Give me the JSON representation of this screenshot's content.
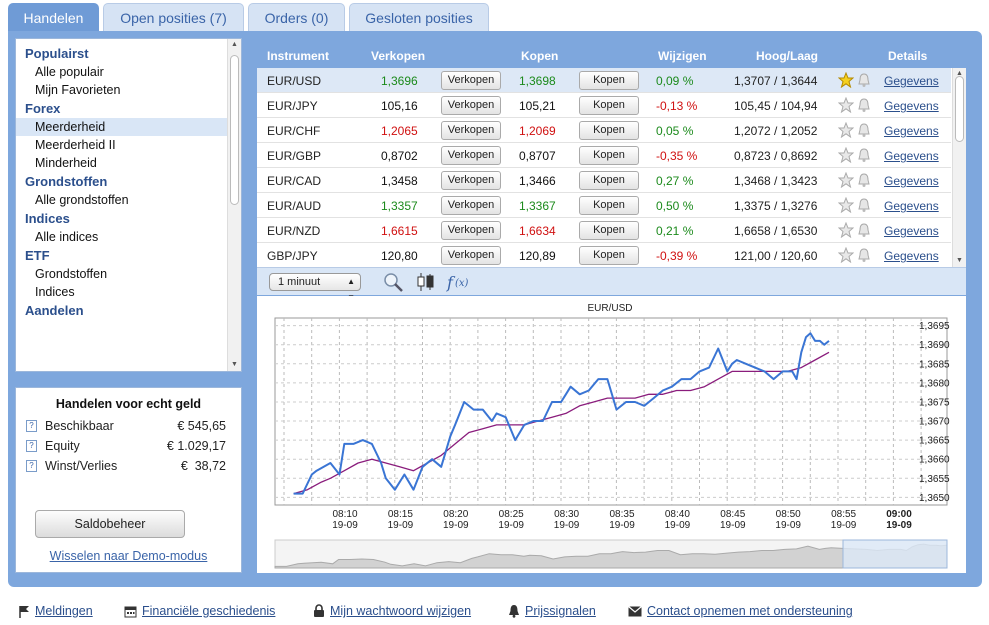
{
  "tabs": [
    {
      "label": "Handelen"
    },
    {
      "label": "Open posities (7)"
    },
    {
      "label": "Orders (0)"
    },
    {
      "label": "Gesloten posities"
    }
  ],
  "nav": {
    "groups": [
      {
        "title": "Populairst",
        "items": [
          "Alle populair",
          "Mijn Favorieten"
        ]
      },
      {
        "title": "Forex",
        "items": [
          "Meerderheid",
          "Meerderheid II",
          "Minderheid"
        ]
      },
      {
        "title": "Grondstoffen",
        "items": [
          "Alle grondstoffen"
        ]
      },
      {
        "title": "Indices",
        "items": [
          "Alle indices"
        ]
      },
      {
        "title": "ETF",
        "items": [
          "Grondstoffen",
          "Indices"
        ]
      },
      {
        "title": "Aandelen",
        "items": []
      }
    ],
    "selected": "Meerderheid"
  },
  "account": {
    "title": "Handelen voor echt geld",
    "rows": [
      {
        "label": "Beschikbaar",
        "value": "€ 545,65"
      },
      {
        "label": "Equity",
        "value": "€ 1.029,17"
      },
      {
        "label": "Winst/Verlies",
        "value": "€  38,72"
      }
    ],
    "saldo_button": "Saldobeheer",
    "demo_link": "Wisselen naar Demo-modus"
  },
  "quotes": {
    "headers": {
      "instrument": "Instrument",
      "sell": "Verkopen",
      "buy": "Kopen",
      "change": "Wijzigen",
      "highlow": "Hoog/Laag",
      "details": "Details"
    },
    "sell_button": "Verkopen",
    "buy_button": "Kopen",
    "details_link": "Gegevens",
    "rows": [
      {
        "instrument": "EUR/USD",
        "sell": "1,3696",
        "buy": "1,3698",
        "change": "0,09 %",
        "highlow": "1,3707 / 1,3644",
        "price_color": "green",
        "change_color": "green",
        "favorite": true
      },
      {
        "instrument": "EUR/JPY",
        "sell": "105,16",
        "buy": "105,21",
        "change": "-0,13 %",
        "highlow": "105,45 / 104,94",
        "price_color": "black",
        "change_color": "red",
        "favorite": false
      },
      {
        "instrument": "EUR/CHF",
        "sell": "1,2065",
        "buy": "1,2069",
        "change": "0,05 %",
        "highlow": "1,2072 / 1,2052",
        "price_color": "red",
        "change_color": "green",
        "favorite": false
      },
      {
        "instrument": "EUR/GBP",
        "sell": "0,8702",
        "buy": "0,8707",
        "change": "-0,35 %",
        "highlow": "0,8723 / 0,8692",
        "price_color": "black",
        "change_color": "red",
        "favorite": false
      },
      {
        "instrument": "EUR/CAD",
        "sell": "1,3458",
        "buy": "1,3466",
        "change": "0,27 %",
        "highlow": "1,3468 / 1,3423",
        "price_color": "black",
        "change_color": "green",
        "favorite": false
      },
      {
        "instrument": "EUR/AUD",
        "sell": "1,3357",
        "buy": "1,3367",
        "change": "0,50 %",
        "highlow": "1,3375 / 1,3276",
        "price_color": "green",
        "change_color": "green",
        "favorite": false
      },
      {
        "instrument": "EUR/NZD",
        "sell": "1,6615",
        "buy": "1,6634",
        "change": "0,21 %",
        "highlow": "1,6658 / 1,6530",
        "price_color": "red",
        "change_color": "green",
        "favorite": false
      },
      {
        "instrument": "GBP/JPY",
        "sell": "120,80",
        "buy": "120,89",
        "change": "-0,39 %",
        "highlow": "121,00 / 120,60",
        "price_color": "black",
        "change_color": "red",
        "favorite": false
      }
    ]
  },
  "chart_toolbar": {
    "interval": "1 minuut",
    "icons": [
      "zoom-icon",
      "candlestick-icon",
      "function-icon"
    ]
  },
  "colors": {
    "frame": "#7ea7dd",
    "tab_active": "#6f9bd6",
    "price_line": "#3a75d4",
    "average_line": "#8a1c7c",
    "green": "#1b8a1b",
    "red": "#d01010"
  },
  "chart_data": {
    "type": "line",
    "title": "EUR/USD",
    "x_ticks": [
      {
        "time": "08:10",
        "date": "19-09"
      },
      {
        "time": "08:15",
        "date": "19-09"
      },
      {
        "time": "08:20",
        "date": "19-09"
      },
      {
        "time": "08:25",
        "date": "19-09"
      },
      {
        "time": "08:30",
        "date": "19-09"
      },
      {
        "time": "08:35",
        "date": "19-09"
      },
      {
        "time": "08:40",
        "date": "19-09"
      },
      {
        "time": "08:45",
        "date": "19-09"
      },
      {
        "time": "08:50",
        "date": "19-09"
      },
      {
        "time": "08:55",
        "date": "19-09"
      },
      {
        "time": "09:00",
        "date": "19-09",
        "bold": true
      }
    ],
    "y_ticks": [
      "1,3650",
      "1,3655",
      "1,3660",
      "1,3665",
      "1,3670",
      "1,3675",
      "1,3680",
      "1,3685",
      "1,3690",
      "1,3695"
    ],
    "ylim": [
      1.3648,
      1.3697
    ],
    "grid": true,
    "series": [
      {
        "x": [
          8.067,
          8.1,
          8.133,
          8.15,
          8.2,
          8.233,
          8.25,
          8.283,
          8.317,
          8.35,
          8.383,
          8.4,
          8.433,
          8.467,
          8.5,
          8.533,
          8.567,
          8.6,
          8.633,
          8.65,
          8.683,
          8.717,
          8.75,
          8.783,
          8.8,
          8.833,
          8.867,
          8.9,
          8.933,
          8.967,
          9.0,
          9.033,
          9.05,
          9.067,
          9.1,
          9.133,
          9.167,
          9.2,
          9.233,
          9.267,
          9.3,
          9.333,
          9.367,
          9.4,
          9.433,
          9.467,
          9.5,
          9.533,
          9.567,
          9.6,
          9.633,
          9.65,
          9.667,
          9.7,
          9.733,
          9.767,
          9.8,
          9.833,
          9.867,
          9.883,
          9.9,
          9.917,
          9.933,
          9.95,
          9.967,
          9.983,
          10.0
        ],
        "values": [
          1.3651,
          1.3651,
          1.3656,
          1.3657,
          1.3659,
          1.3656,
          1.3664,
          1.3664,
          1.3665,
          1.3664,
          1.3659,
          1.3655,
          1.3652,
          1.3656,
          1.3652,
          1.3658,
          1.366,
          1.3658,
          1.3666,
          1.3669,
          1.3675,
          1.3673,
          1.3673,
          1.367,
          1.3672,
          1.3671,
          1.3665,
          1.3669,
          1.367,
          1.367,
          1.3675,
          1.3675,
          1.3677,
          1.3679,
          1.3677,
          1.3678,
          1.3681,
          1.3681,
          1.3673,
          1.3675,
          1.3675,
          1.3674,
          1.3676,
          1.3678,
          1.3679,
          1.3681,
          1.3681,
          1.3683,
          1.3684,
          1.3689,
          1.3683,
          1.3685,
          1.3686,
          1.3685,
          1.3684,
          1.3683,
          1.3681,
          1.3683,
          1.3683,
          1.3681,
          1.3688,
          1.3692,
          1.3693,
          1.3691,
          1.3691,
          1.369,
          1.3691
        ]
      },
      {
        "x": [
          8.067,
          8.117,
          8.167,
          8.2,
          8.25,
          8.3,
          8.35,
          8.4,
          8.45,
          8.5,
          8.55,
          8.6,
          8.65,
          8.7,
          8.75,
          8.8,
          8.85,
          8.9,
          8.95,
          9.0,
          9.05,
          9.1,
          9.15,
          9.2,
          9.25,
          9.3,
          9.35,
          9.4,
          9.45,
          9.5,
          9.55,
          9.6,
          9.65,
          9.7,
          9.75,
          9.8,
          9.85,
          9.9,
          9.95,
          10.0
        ],
        "values": [
          1.3651,
          1.3652,
          1.3654,
          1.3655,
          1.3657,
          1.3659,
          1.366,
          1.3659,
          1.3658,
          1.3657,
          1.3659,
          1.3661,
          1.3664,
          1.3667,
          1.3668,
          1.3669,
          1.3669,
          1.3669,
          1.367,
          1.3671,
          1.3672,
          1.3674,
          1.3675,
          1.3676,
          1.3676,
          1.3676,
          1.3677,
          1.3677,
          1.3678,
          1.3678,
          1.3679,
          1.3681,
          1.3683,
          1.3683,
          1.3683,
          1.3683,
          1.3683,
          1.3684,
          1.3686,
          1.3688
        ]
      }
    ]
  },
  "footer": [
    {
      "label": "Meldingen",
      "icon": "flag-icon"
    },
    {
      "label": "Financiële geschiedenis",
      "icon": "calendar-icon"
    },
    {
      "label": "Mijn wachtwoord wijzigen",
      "icon": "lock-icon"
    },
    {
      "label": "Prijssignalen",
      "icon": "bell-icon"
    },
    {
      "label": "Contact opnemen met ondersteuning",
      "icon": "mail-icon"
    }
  ]
}
